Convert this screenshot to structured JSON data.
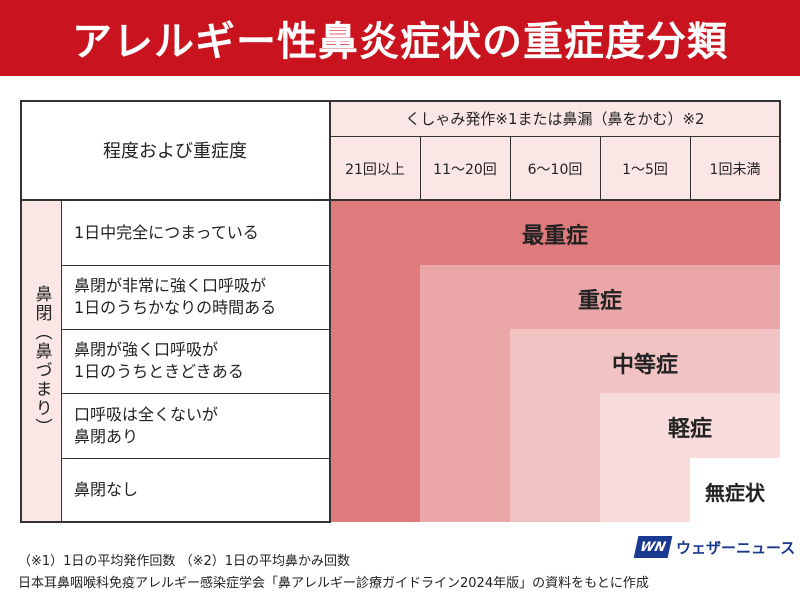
{
  "title": "アレルギー性鼻炎症状の重症度分類",
  "table": {
    "corner_label": "程度および重症度",
    "top_header": "くしゃみ発作※1または鼻漏（鼻をかむ）※2",
    "columns": [
      "21回以上",
      "11〜20回",
      "6〜10回",
      "1〜5回",
      "1回未満"
    ],
    "row_group_label": "鼻閉（鼻づまり）",
    "rows": [
      "1日中完全につまっている",
      "鼻閉が非常に強く口呼吸が\n1日のうちかなりの時間ある",
      "鼻閉が強く口呼吸が\n1日のうちときどきある",
      "口呼吸は全くないが\n鼻閉あり",
      "鼻閉なし"
    ]
  },
  "severity": {
    "most_severe": "最重症",
    "severe": "重症",
    "moderate": "中等症",
    "mild": "軽症",
    "none": "無症状"
  },
  "colors": {
    "title_bg": "#c9141f",
    "header_bg": "#fbe6e6",
    "most_severe": "#e07b7d",
    "severe": "#eba7a7",
    "moderate": "#f2c3c3",
    "mild": "#f8dcdc",
    "none": "#ffffff"
  },
  "footer": {
    "note": "（※1）1日の平均発作回数 （※2）1日の平均鼻かみ回数",
    "source": "日本耳鼻咽喉科免疫アレルギー感染症学会「鼻アレルギー診療ガイドライン2024年版」の資料をもとに作成"
  },
  "logo": {
    "mark": "WN",
    "text": "ウェザーニュース"
  }
}
